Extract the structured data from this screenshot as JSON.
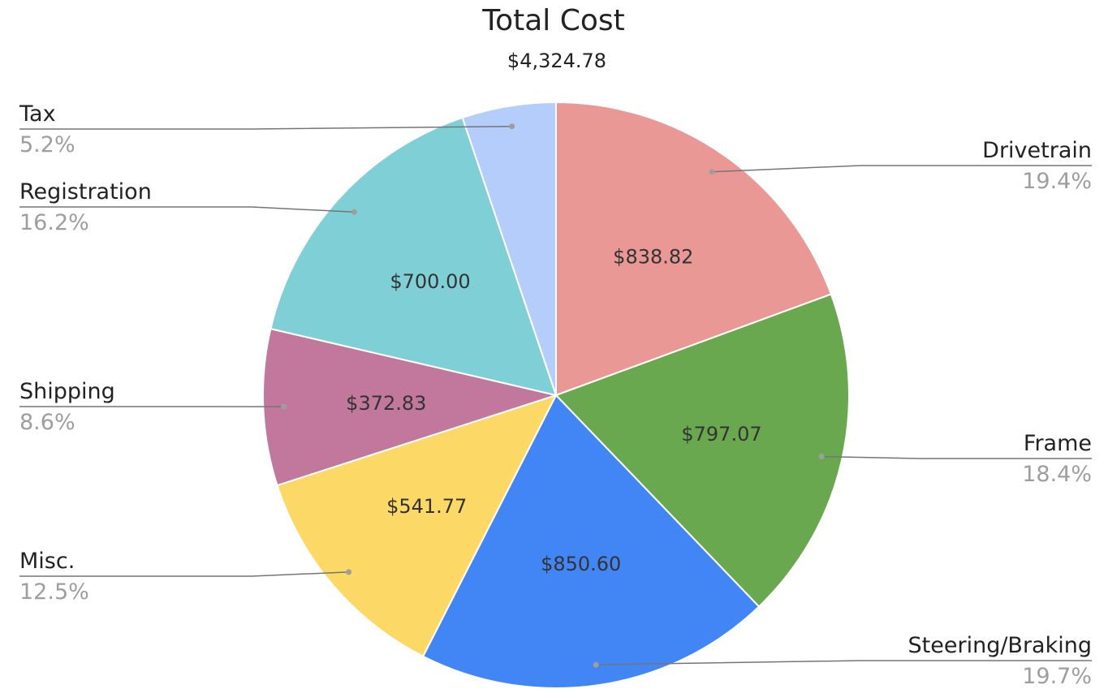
{
  "chart_data": {
    "type": "pie",
    "title": "Total Cost",
    "subtitle": "$4,324.78",
    "start_angle_deg": 0,
    "direction": "clockwise",
    "slices": [
      {
        "label": "Drivetrain",
        "value": 838.82,
        "value_label": "$838.82",
        "percent_label": "19.4%",
        "color": "#e99896",
        "label_side": "right"
      },
      {
        "label": "Frame",
        "value": 797.07,
        "value_label": "$797.07",
        "percent_label": "18.4%",
        "color": "#6aa84f",
        "label_side": "right"
      },
      {
        "label": "Steering/Braking",
        "value": 850.6,
        "value_label": "$850.60",
        "percent_label": "19.7%",
        "color": "#4285f4",
        "label_side": "right"
      },
      {
        "label": "Misc.",
        "value": 541.77,
        "value_label": "$541.77",
        "percent_label": "12.5%",
        "color": "#fcd866",
        "label_side": "left"
      },
      {
        "label": "Shipping",
        "value": 372.83,
        "value_label": "$372.83",
        "percent_label": "8.6%",
        "color": "#c2789c",
        "label_side": "left"
      },
      {
        "label": "Registration",
        "value": 700.0,
        "value_label": "$700.00",
        "percent_label": "16.2%",
        "color": "#7fd0d6",
        "label_side": "left"
      },
      {
        "label": "Tax",
        "value": 223.69,
        "value_label": "",
        "percent_label": "5.2%",
        "color": "#b4cdfa",
        "label_side": "left"
      }
    ]
  }
}
